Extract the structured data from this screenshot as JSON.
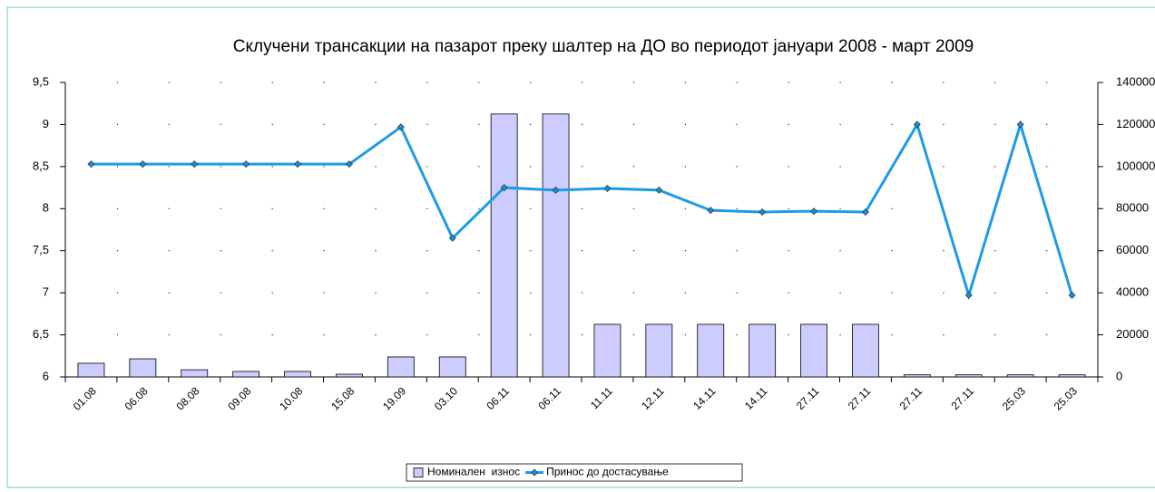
{
  "chart_data": {
    "type": "bar-line",
    "title": "Склучени трансакции на пазарот преку шалтер на ДО во периодот јануари 2008 - март 2009",
    "categories": [
      "01.08",
      "06.08",
      "08.08",
      "09.08",
      "10.08",
      "15.08",
      "19.09",
      "03.10",
      "06.11",
      "06.11",
      "11.11",
      "12.11",
      "14.11",
      "14.11",
      "27.11",
      "27.11",
      "27.11",
      "27.11",
      "25.03",
      "25.03"
    ],
    "series": [
      {
        "name": "Номинален  износ",
        "type": "bar",
        "color": "#ccccff",
        "axis": "y2",
        "values": [
          6500,
          8600,
          3400,
          2600,
          2600,
          1300,
          9500,
          9500,
          125000,
          125000,
          25000,
          25000,
          25000,
          25000,
          25000,
          25000,
          1000,
          1000,
          1000,
          1000
        ]
      },
      {
        "name": "Принос до достасување",
        "type": "line",
        "color": "#1e9be6",
        "values": [
          8.53,
          8.53,
          8.53,
          8.53,
          8.53,
          8.53,
          8.97,
          7.65,
          8.25,
          8.22,
          8.24,
          8.22,
          7.98,
          7.96,
          7.97,
          7.96,
          9.0,
          6.97,
          9.0,
          6.97
        ]
      }
    ],
    "ylim": [
      6,
      9.5
    ],
    "yticks": [
      6,
      {
        "value": 6.5,
        "label": "6,5"
      },
      7,
      {
        "value": 7.5,
        "label": "7,5"
      },
      8,
      {
        "value": 8.5,
        "label": "8,5"
      },
      9,
      {
        "value": 9.5,
        "label": "9,5"
      }
    ],
    "y2lim": [
      0,
      140000
    ],
    "y2ticks": [
      0,
      20000,
      40000,
      60000,
      80000,
      100000,
      120000,
      140000
    ],
    "grid": true,
    "legend": "bottom"
  }
}
